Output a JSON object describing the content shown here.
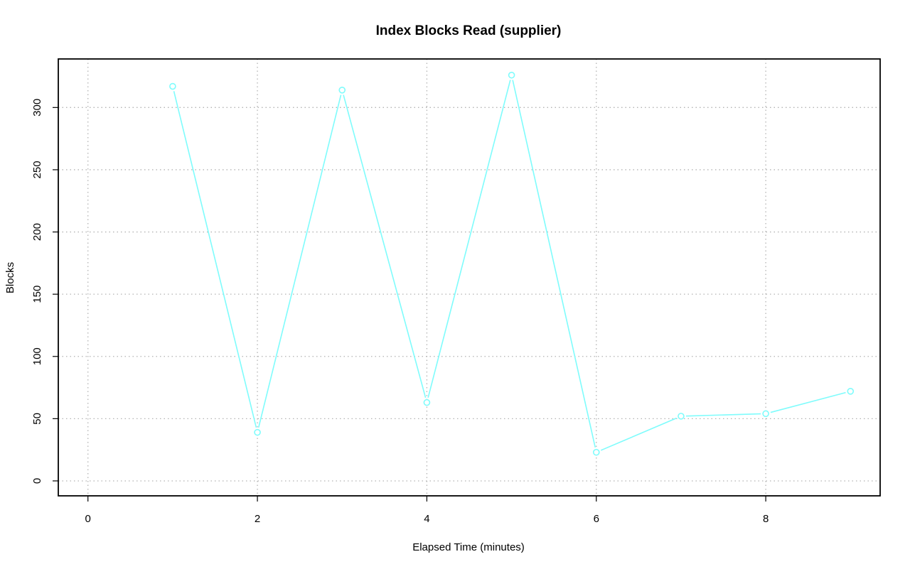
{
  "chart_data": {
    "type": "line",
    "title": "Index Blocks Read (supplier)",
    "xlabel": "Elapsed Time (minutes)",
    "ylabel": "Blocks",
    "xlim": [
      -0.35,
      9.35
    ],
    "ylim": [
      -12,
      339
    ],
    "x_ticks": [
      0,
      2,
      4,
      6,
      8
    ],
    "y_ticks": [
      0,
      50,
      100,
      150,
      200,
      250,
      300
    ],
    "x_grid": [
      0,
      2,
      4,
      6,
      8
    ],
    "y_grid": [
      0,
      50,
      100,
      150,
      200,
      250,
      300
    ],
    "grid": true,
    "series": [
      {
        "color": "#7ffcfc",
        "marker": "open-circle",
        "x": [
          1,
          2,
          3,
          4,
          5,
          6,
          7,
          8,
          9
        ],
        "y": [
          317,
          39,
          314,
          63,
          326,
          23,
          52,
          54,
          72
        ]
      }
    ]
  }
}
